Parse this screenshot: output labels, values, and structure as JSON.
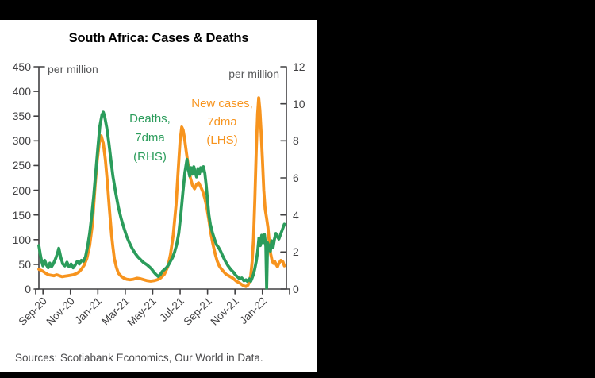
{
  "window": {
    "background": "#000000",
    "panel_background": "#ffffff"
  },
  "footer": {
    "sources": "Sources: Scotiabank Economics, Our World in Data."
  },
  "chart_data": {
    "type": "line",
    "title": "South Africa: Cases & Deaths",
    "grid": false,
    "legend_position": "inline-annotations",
    "colors": {
      "cases": "#f7941e",
      "deaths": "#2b9c5b",
      "axis": "#414042",
      "tick_text": "#414042",
      "unit_text": "#57585a",
      "sources_text": "#4a4a4c"
    },
    "axes": {
      "left": {
        "unit": "per million",
        "min": 0,
        "max": 450,
        "tick_step": 50,
        "ticks": [
          "450",
          "400",
          "350",
          "300",
          "250",
          "200",
          "150",
          "100",
          "50",
          "0"
        ]
      },
      "right": {
        "unit": "per million",
        "min": 0,
        "max": 12,
        "tick_step": 2,
        "ticks": [
          "12",
          "10",
          "8",
          "6",
          "4",
          "2",
          "0"
        ]
      },
      "x": {
        "tick_labels": [
          "Sep-20",
          "Nov-20",
          "Jan-21",
          "Mar-21",
          "May-21",
          "Jul-21",
          "Sep-21",
          "Nov-21",
          "Jan-22"
        ],
        "tick_months_from_sep20": [
          0,
          2,
          4,
          6,
          8,
          10,
          12,
          14,
          16
        ],
        "t_min": -0.3,
        "t_max": 17.75
      }
    },
    "series": [
      {
        "id": "cases",
        "name": "New cases, 7dma (LHS)",
        "label_lines": [
          "New cases,",
          "7dma",
          "(LHS)"
        ],
        "axis": "left",
        "color": "#f7941e",
        "points": [
          [
            -0.3,
            40
          ],
          [
            -0.15,
            38
          ],
          [
            0,
            36
          ],
          [
            0.2,
            32
          ],
          [
            0.4,
            29
          ],
          [
            0.6,
            28
          ],
          [
            0.8,
            27
          ],
          [
            1.0,
            29
          ],
          [
            1.2,
            27
          ],
          [
            1.4,
            25
          ],
          [
            1.6,
            26
          ],
          [
            1.8,
            27
          ],
          [
            2.0,
            28
          ],
          [
            2.2,
            29
          ],
          [
            2.4,
            31
          ],
          [
            2.6,
            34
          ],
          [
            2.8,
            40
          ],
          [
            3.0,
            48
          ],
          [
            3.2,
            62
          ],
          [
            3.4,
            88
          ],
          [
            3.6,
            130
          ],
          [
            3.8,
            210
          ],
          [
            3.95,
            260
          ],
          [
            4.1,
            295
          ],
          [
            4.25,
            310
          ],
          [
            4.4,
            295
          ],
          [
            4.55,
            262
          ],
          [
            4.7,
            215
          ],
          [
            4.85,
            160
          ],
          [
            5.0,
            110
          ],
          [
            5.1,
            85
          ],
          [
            5.2,
            62
          ],
          [
            5.35,
            44
          ],
          [
            5.5,
            32
          ],
          [
            5.7,
            26
          ],
          [
            5.9,
            22
          ],
          [
            6.1,
            20
          ],
          [
            6.35,
            19
          ],
          [
            6.6,
            20
          ],
          [
            6.85,
            22
          ],
          [
            7.1,
            21
          ],
          [
            7.35,
            19
          ],
          [
            7.6,
            17
          ],
          [
            7.85,
            16
          ],
          [
            8.1,
            17
          ],
          [
            8.35,
            19
          ],
          [
            8.6,
            23
          ],
          [
            8.85,
            30
          ],
          [
            9.1,
            45
          ],
          [
            9.3,
            70
          ],
          [
            9.5,
            110
          ],
          [
            9.7,
            170
          ],
          [
            9.85,
            235
          ],
          [
            10.0,
            300
          ],
          [
            10.12,
            328
          ],
          [
            10.22,
            322
          ],
          [
            10.32,
            305
          ],
          [
            10.45,
            278
          ],
          [
            10.6,
            248
          ],
          [
            10.75,
            225
          ],
          [
            10.9,
            210
          ],
          [
            11.05,
            203
          ],
          [
            11.2,
            212
          ],
          [
            11.35,
            215
          ],
          [
            11.5,
            207
          ],
          [
            11.65,
            197
          ],
          [
            11.8,
            183
          ],
          [
            11.95,
            165
          ],
          [
            12.1,
            140
          ],
          [
            12.25,
            112
          ],
          [
            12.4,
            90
          ],
          [
            12.55,
            72
          ],
          [
            12.7,
            57
          ],
          [
            12.85,
            47
          ],
          [
            13.0,
            41
          ],
          [
            13.15,
            36
          ],
          [
            13.35,
            30
          ],
          [
            13.6,
            26
          ],
          [
            13.85,
            22
          ],
          [
            14.1,
            16
          ],
          [
            14.35,
            12
          ],
          [
            14.6,
            7
          ],
          [
            14.8,
            5
          ],
          [
            14.95,
            8
          ],
          [
            15.05,
            15
          ],
          [
            15.15,
            28
          ],
          [
            15.25,
            55
          ],
          [
            15.35,
            100
          ],
          [
            15.45,
            180
          ],
          [
            15.55,
            280
          ],
          [
            15.65,
            355
          ],
          [
            15.73,
            387
          ],
          [
            15.82,
            362
          ],
          [
            15.9,
            322
          ],
          [
            16.0,
            262
          ],
          [
            16.1,
            200
          ],
          [
            16.2,
            162
          ],
          [
            16.3,
            145
          ],
          [
            16.4,
            125
          ],
          [
            16.5,
            95
          ],
          [
            16.6,
            72
          ],
          [
            16.7,
            58
          ],
          [
            16.8,
            52
          ],
          [
            16.9,
            56
          ],
          [
            17.0,
            50
          ],
          [
            17.1,
            45
          ],
          [
            17.2,
            52
          ],
          [
            17.35,
            58
          ],
          [
            17.5,
            55
          ],
          [
            17.6,
            47
          ]
        ]
      },
      {
        "id": "deaths",
        "name": "Deaths, 7dma (RHS)",
        "label_lines": [
          "Deaths,",
          "7dma",
          "(RHS)"
        ],
        "axis": "right",
        "color": "#2b9c5b",
        "points": [
          [
            -0.3,
            2.35
          ],
          [
            -0.2,
            1.9
          ],
          [
            -0.1,
            1.5
          ],
          [
            0,
            1.25
          ],
          [
            0.12,
            1.55
          ],
          [
            0.25,
            1.3
          ],
          [
            0.38,
            1.15
          ],
          [
            0.5,
            1.4
          ],
          [
            0.62,
            1.2
          ],
          [
            0.75,
            1.35
          ],
          [
            0.9,
            1.6
          ],
          [
            1.05,
            1.9
          ],
          [
            1.15,
            2.2
          ],
          [
            1.3,
            1.7
          ],
          [
            1.45,
            1.35
          ],
          [
            1.6,
            1.25
          ],
          [
            1.75,
            1.45
          ],
          [
            1.9,
            1.2
          ],
          [
            2.05,
            1.35
          ],
          [
            2.2,
            1.15
          ],
          [
            2.35,
            1.3
          ],
          [
            2.5,
            1.5
          ],
          [
            2.65,
            1.35
          ],
          [
            2.8,
            1.55
          ],
          [
            2.95,
            1.5
          ],
          [
            3.1,
            1.75
          ],
          [
            3.25,
            2.3
          ],
          [
            3.4,
            3.0
          ],
          [
            3.55,
            3.9
          ],
          [
            3.7,
            5.0
          ],
          [
            3.85,
            6.3
          ],
          [
            4.0,
            7.6
          ],
          [
            4.15,
            8.8
          ],
          [
            4.3,
            9.4
          ],
          [
            4.4,
            9.55
          ],
          [
            4.5,
            9.3
          ],
          [
            4.65,
            8.7
          ],
          [
            4.8,
            7.9
          ],
          [
            4.95,
            7.0
          ],
          [
            5.1,
            6.1
          ],
          [
            5.3,
            5.2
          ],
          [
            5.5,
            4.4
          ],
          [
            5.7,
            3.8
          ],
          [
            5.9,
            3.3
          ],
          [
            6.1,
            2.85
          ],
          [
            6.3,
            2.5
          ],
          [
            6.5,
            2.2
          ],
          [
            6.7,
            1.95
          ],
          [
            6.9,
            1.75
          ],
          [
            7.1,
            1.6
          ],
          [
            7.3,
            1.45
          ],
          [
            7.6,
            1.3
          ],
          [
            7.9,
            1.1
          ],
          [
            8.1,
            0.9
          ],
          [
            8.25,
            0.78
          ],
          [
            8.4,
            0.68
          ],
          [
            8.55,
            0.78
          ],
          [
            8.7,
            0.95
          ],
          [
            8.85,
            1.05
          ],
          [
            9.0,
            1.15
          ],
          [
            9.15,
            1.3
          ],
          [
            9.3,
            1.5
          ],
          [
            9.45,
            1.7
          ],
          [
            9.6,
            2.0
          ],
          [
            9.75,
            2.4
          ],
          [
            9.9,
            3.0
          ],
          [
            10.05,
            4.0
          ],
          [
            10.2,
            5.2
          ],
          [
            10.35,
            6.3
          ],
          [
            10.5,
            7.0
          ],
          [
            10.6,
            6.45
          ],
          [
            10.7,
            6.1
          ],
          [
            10.8,
            6.55
          ],
          [
            10.9,
            6.2
          ],
          [
            11.0,
            6.6
          ],
          [
            11.1,
            6.3
          ],
          [
            11.2,
            6.05
          ],
          [
            11.3,
            6.5
          ],
          [
            11.4,
            6.2
          ],
          [
            11.5,
            6.55
          ],
          [
            11.6,
            6.35
          ],
          [
            11.7,
            6.6
          ],
          [
            11.8,
            6.25
          ],
          [
            11.9,
            5.6
          ],
          [
            12.0,
            4.8
          ],
          [
            12.1,
            4.0
          ],
          [
            12.2,
            3.5
          ],
          [
            12.35,
            3.05
          ],
          [
            12.5,
            2.7
          ],
          [
            12.65,
            2.4
          ],
          [
            12.8,
            2.25
          ],
          [
            12.95,
            2.05
          ],
          [
            13.1,
            1.8
          ],
          [
            13.3,
            1.5
          ],
          [
            13.5,
            1.25
          ],
          [
            13.7,
            1.05
          ],
          [
            13.9,
            0.9
          ],
          [
            14.05,
            0.75
          ],
          [
            14.2,
            0.65
          ],
          [
            14.35,
            0.55
          ],
          [
            14.5,
            0.6
          ],
          [
            14.65,
            0.45
          ],
          [
            14.8,
            0.5
          ],
          [
            14.9,
            0.42
          ],
          [
            15.05,
            0.55
          ],
          [
            15.15,
            0.42
          ],
          [
            15.25,
            0.6
          ],
          [
            15.35,
            0.8
          ],
          [
            15.45,
            1.1
          ],
          [
            15.55,
            1.5
          ],
          [
            15.65,
            2.0
          ],
          [
            15.75,
            2.75
          ],
          [
            15.85,
            2.35
          ],
          [
            15.95,
            2.9
          ],
          [
            16.05,
            2.5
          ],
          [
            16.15,
            2.95
          ],
          [
            16.25,
            2.3
          ],
          [
            16.31,
            0.05
          ],
          [
            16.38,
            2.5
          ],
          [
            16.48,
            2.3
          ],
          [
            16.58,
            2.05
          ],
          [
            16.68,
            2.6
          ],
          [
            16.78,
            2.25
          ],
          [
            16.88,
            2.7
          ],
          [
            16.98,
            3.0
          ],
          [
            17.08,
            2.85
          ],
          [
            17.2,
            2.7
          ],
          [
            17.35,
            3.0
          ],
          [
            17.5,
            3.3
          ],
          [
            17.6,
            3.5
          ]
        ]
      }
    ]
  }
}
